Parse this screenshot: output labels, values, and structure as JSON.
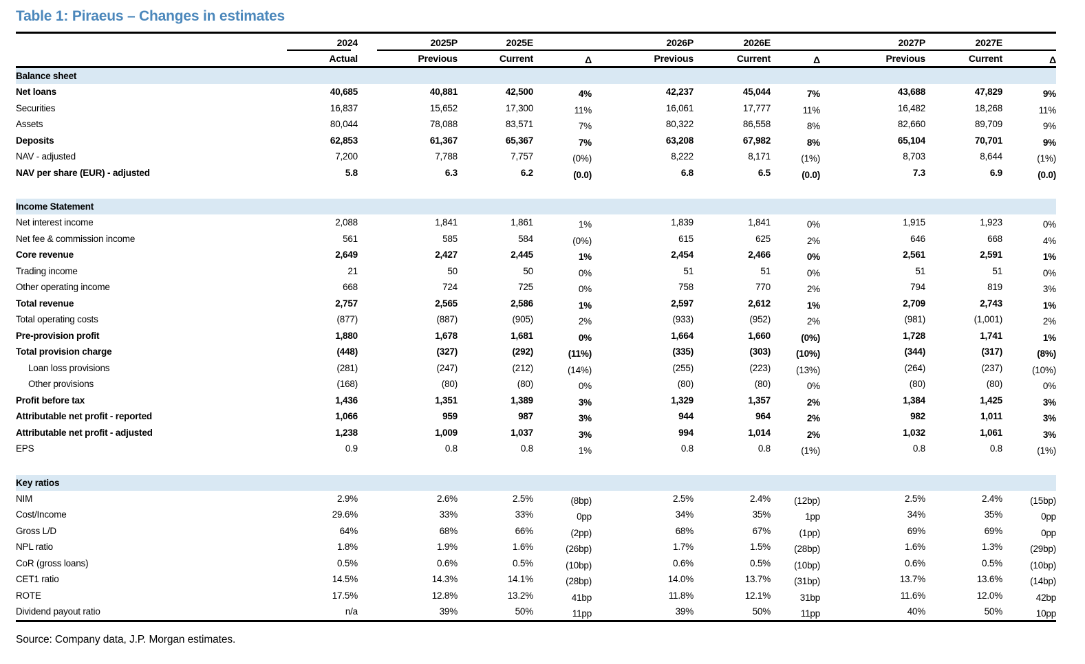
{
  "title": "Table 1: Piraeus – Changes in estimates",
  "source": "Source: Company data, J.P. Morgan estimates.",
  "colors": {
    "title_blue": "#4B87BB",
    "section_band": "#D9E8F3",
    "rule": "#000000"
  },
  "header": {
    "years": [
      "2024",
      "2025P",
      "2025E",
      "2026P",
      "2026E",
      "2027P",
      "2027E"
    ],
    "sub": [
      "Actual",
      "Previous",
      "Current",
      "Δ",
      "Previous",
      "Current",
      "Δ",
      "Previous",
      "Current",
      "Δ"
    ]
  },
  "sections": [
    {
      "name": "Balance sheet",
      "rows": [
        {
          "label": "Net loans",
          "bold": true,
          "values": [
            "40,685",
            "40,881",
            "42,500",
            "4%",
            "42,237",
            "45,044",
            "7%",
            "43,688",
            "47,829",
            "9%"
          ]
        },
        {
          "label": "Securities",
          "values": [
            "16,837",
            "15,652",
            "17,300",
            "11%",
            "16,061",
            "17,777",
            "11%",
            "16,482",
            "18,268",
            "11%"
          ]
        },
        {
          "label": "Assets",
          "values": [
            "80,044",
            "78,088",
            "83,571",
            "7%",
            "80,322",
            "86,558",
            "8%",
            "82,660",
            "89,709",
            "9%"
          ]
        },
        {
          "label": "Deposits",
          "bold": true,
          "values": [
            "62,853",
            "61,367",
            "65,367",
            "7%",
            "63,208",
            "67,982",
            "8%",
            "65,104",
            "70,701",
            "9%"
          ]
        },
        {
          "label": "NAV - adjusted",
          "values": [
            "7,200",
            "7,788",
            "7,757",
            "(0%)",
            "8,222",
            "8,171",
            "(1%)",
            "8,703",
            "8,644",
            "(1%)"
          ]
        },
        {
          "label": "NAV per share (EUR) - adjusted",
          "bold": true,
          "values": [
            "5.8",
            "6.3",
            "6.2",
            "(0.0)",
            "6.8",
            "6.5",
            "(0.0)",
            "7.3",
            "6.9",
            "(0.0)"
          ]
        }
      ]
    },
    {
      "name": "Income Statement",
      "rows": [
        {
          "label": "Net interest income",
          "values": [
            "2,088",
            "1,841",
            "1,861",
            "1%",
            "1,839",
            "1,841",
            "0%",
            "1,915",
            "1,923",
            "0%"
          ]
        },
        {
          "label": "Net fee & commission income",
          "values": [
            "561",
            "585",
            "584",
            "(0%)",
            "615",
            "625",
            "2%",
            "646",
            "668",
            "4%"
          ]
        },
        {
          "label": "Core revenue",
          "bold": true,
          "values": [
            "2,649",
            "2,427",
            "2,445",
            "1%",
            "2,454",
            "2,466",
            "0%",
            "2,561",
            "2,591",
            "1%"
          ]
        },
        {
          "label": "Trading income",
          "values": [
            "21",
            "50",
            "50",
            "0%",
            "51",
            "51",
            "0%",
            "51",
            "51",
            "0%"
          ]
        },
        {
          "label": "Other operating income",
          "values": [
            "668",
            "724",
            "725",
            "0%",
            "758",
            "770",
            "2%",
            "794",
            "819",
            "3%"
          ]
        },
        {
          "label": "Total revenue",
          "bold": true,
          "values": [
            "2,757",
            "2,565",
            "2,586",
            "1%",
            "2,597",
            "2,612",
            "1%",
            "2,709",
            "2,743",
            "1%"
          ]
        },
        {
          "label": "Total operating costs",
          "values": [
            "(877)",
            "(887)",
            "(905)",
            "2%",
            "(933)",
            "(952)",
            "2%",
            "(981)",
            "(1,001)",
            "2%"
          ]
        },
        {
          "label": "Pre-provision profit",
          "bold": true,
          "values": [
            "1,880",
            "1,678",
            "1,681",
            "0%",
            "1,664",
            "1,660",
            "(0%)",
            "1,728",
            "1,741",
            "1%"
          ]
        },
        {
          "label": "Total provision charge",
          "bold": true,
          "values": [
            "(448)",
            "(327)",
            "(292)",
            "(11%)",
            "(335)",
            "(303)",
            "(10%)",
            "(344)",
            "(317)",
            "(8%)"
          ]
        },
        {
          "label": "Loan loss provisions",
          "indent": true,
          "values": [
            "(281)",
            "(247)",
            "(212)",
            "(14%)",
            "(255)",
            "(223)",
            "(13%)",
            "(264)",
            "(237)",
            "(10%)"
          ]
        },
        {
          "label": "Other provisions",
          "indent": true,
          "values": [
            "(168)",
            "(80)",
            "(80)",
            "0%",
            "(80)",
            "(80)",
            "0%",
            "(80)",
            "(80)",
            "0%"
          ]
        },
        {
          "label": "Profit before tax",
          "bold": true,
          "values": [
            "1,436",
            "1,351",
            "1,389",
            "3%",
            "1,329",
            "1,357",
            "2%",
            "1,384",
            "1,425",
            "3%"
          ]
        },
        {
          "label": "Attributable net profit - reported",
          "bold": true,
          "values": [
            "1,066",
            "959",
            "987",
            "3%",
            "944",
            "964",
            "2%",
            "982",
            "1,011",
            "3%"
          ]
        },
        {
          "label": "Attributable net profit - adjusted",
          "bold": true,
          "values": [
            "1,238",
            "1,009",
            "1,037",
            "3%",
            "994",
            "1,014",
            "2%",
            "1,032",
            "1,061",
            "3%"
          ]
        },
        {
          "label": "EPS",
          "values": [
            "0.9",
            "0.8",
            "0.8",
            "1%",
            "0.8",
            "0.8",
            "(1%)",
            "0.8",
            "0.8",
            "(1%)"
          ]
        }
      ]
    },
    {
      "name": "Key ratios",
      "rows": [
        {
          "label": "NIM",
          "values": [
            "2.9%",
            "2.6%",
            "2.5%",
            "(8bp)",
            "2.5%",
            "2.4%",
            "(12bp)",
            "2.5%",
            "2.4%",
            "(15bp)"
          ]
        },
        {
          "label": "Cost/Income",
          "values": [
            "29.6%",
            "33%",
            "33%",
            "0pp",
            "34%",
            "35%",
            "1pp",
            "34%",
            "35%",
            "0pp"
          ]
        },
        {
          "label": "Gross L/D",
          "values": [
            "64%",
            "68%",
            "66%",
            "(2pp)",
            "68%",
            "67%",
            "(1pp)",
            "69%",
            "69%",
            "0pp"
          ]
        },
        {
          "label": "NPL ratio",
          "values": [
            "1.8%",
            "1.9%",
            "1.6%",
            "(26bp)",
            "1.7%",
            "1.5%",
            "(28bp)",
            "1.6%",
            "1.3%",
            "(29bp)"
          ]
        },
        {
          "label": "CoR (gross loans)",
          "values": [
            "0.5%",
            "0.6%",
            "0.5%",
            "(10bp)",
            "0.6%",
            "0.5%",
            "(10bp)",
            "0.6%",
            "0.5%",
            "(10bp)"
          ]
        },
        {
          "label": "CET1 ratio",
          "values": [
            "14.5%",
            "14.3%",
            "14.1%",
            "(28bp)",
            "14.0%",
            "13.7%",
            "(31bp)",
            "13.7%",
            "13.6%",
            "(14bp)"
          ]
        },
        {
          "label": "ROTE",
          "values": [
            "17.5%",
            "12.8%",
            "13.2%",
            "41bp",
            "11.8%",
            "12.1%",
            "31bp",
            "11.6%",
            "12.0%",
            "42bp"
          ]
        },
        {
          "label": "Dividend payout ratio",
          "values": [
            "n/a",
            "39%",
            "50%",
            "11pp",
            "39%",
            "50%",
            "11pp",
            "40%",
            "50%",
            "10pp"
          ]
        }
      ]
    }
  ]
}
